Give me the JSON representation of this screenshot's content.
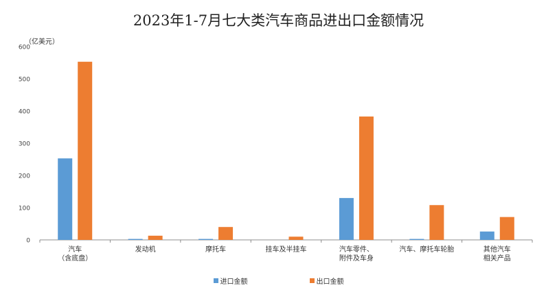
{
  "chart_data": {
    "type": "bar",
    "title": "2023年1-7月七大类汽车商品进出口金额情况",
    "unit_label": "（亿美元）",
    "categories": [
      [
        "汽车",
        "（含底盘）"
      ],
      [
        "发动机"
      ],
      [
        "摩托车"
      ],
      [
        "挂车及半挂车"
      ],
      [
        "汽车零件、",
        "附件及车身"
      ],
      [
        "汽车、摩托车轮胎"
      ],
      [
        "其他汽车",
        "相关产品"
      ]
    ],
    "series": [
      {
        "name": "进口金额",
        "color": "#5b9bd5",
        "values": [
          253,
          3,
          3,
          0,
          130,
          3,
          26
        ]
      },
      {
        "name": "出口金额",
        "color": "#ed7d31",
        "values": [
          553,
          13,
          40,
          10,
          383,
          108,
          71
        ]
      }
    ],
    "ylim": [
      0,
      600
    ],
    "yticks": [
      0,
      100,
      200,
      300,
      400,
      500,
      600
    ],
    "legend_position": "bottom",
    "grid": false
  }
}
